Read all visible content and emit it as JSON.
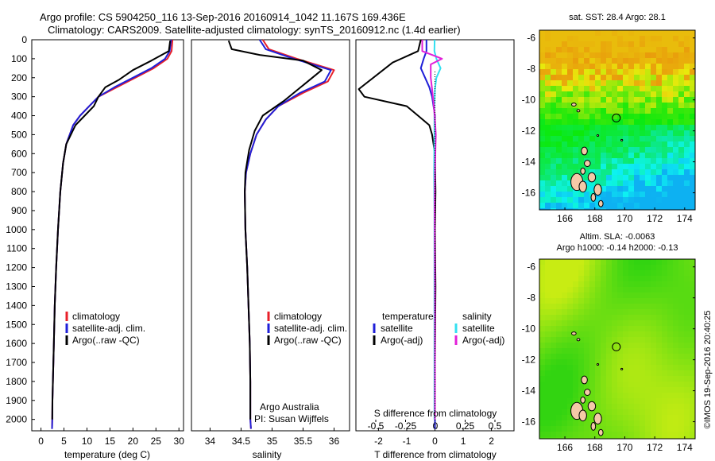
{
  "header": {
    "line1": "Argo profile: CS 5904250_116 13-Sep-2016 20160914_1042 11.167S 169.436E",
    "line2": "Climatology: CARS2009. Satellite-adjusted climatology: synTS_20160912.nc (1.4d earlier)"
  },
  "colors": {
    "climatology": "#e8202a",
    "satellite_adj": "#1f1fd8",
    "argo": "#000000",
    "satellite_sal": "#33e0f0",
    "argo_adj_sal": "#e21fd8"
  },
  "footer": {
    "argo_australia": "Argo Australia",
    "pi": "PI: Susan Wijffels"
  },
  "timestamp": "©IMOS 19-Sep-2016 20:40:25",
  "map_sst": {
    "title": "sat. SST: 28.4  Argo: 28.1"
  },
  "map_sla": {
    "title_line1": "Altim. SLA: -0.0063",
    "title_line2": "Argo h1000: -0.14  h2000: -0.13"
  },
  "chart_data": [
    {
      "type": "line",
      "id": "temperature",
      "xlabel": "temperature (deg C)",
      "ylabel": "",
      "xlim": [
        -2,
        31
      ],
      "ylim": [
        2060,
        0
      ],
      "xticks": [
        0,
        5,
        10,
        15,
        20,
        25,
        30
      ],
      "yticks": [
        0,
        100,
        200,
        300,
        400,
        500,
        600,
        700,
        800,
        900,
        1000,
        1100,
        1200,
        1300,
        1400,
        1500,
        1600,
        1700,
        1800,
        1900,
        2000
      ],
      "legend": [
        "climatology",
        "satellite-adj. clim.",
        "Argo(..raw -QC)"
      ],
      "series": [
        {
          "name": "climatology",
          "color": "#e8202a",
          "x": [
            28.6,
            28.4,
            27.5,
            24.5,
            20.5,
            16.5,
            12.5,
            10.5,
            8.5,
            7.0,
            5.5,
            4.8,
            4.2,
            3.7,
            3.3,
            3.0,
            2.8,
            2.6,
            2.5,
            2.45,
            2.4
          ],
          "y": [
            0,
            60,
            100,
            150,
            200,
            250,
            300,
            350,
            400,
            450,
            550,
            650,
            800,
            1000,
            1200,
            1400,
            1600,
            1800,
            1900,
            2000,
            2050
          ]
        },
        {
          "name": "satellite-adj. clim.",
          "color": "#1f1fd8",
          "x": [
            28.3,
            28.0,
            27.0,
            24.0,
            20.0,
            16.0,
            12.5,
            10.5,
            8.5,
            7.0,
            5.5,
            4.8,
            4.2,
            3.7,
            3.3,
            3.0,
            2.8,
            2.6,
            2.5,
            2.45,
            2.4
          ],
          "y": [
            0,
            60,
            100,
            150,
            200,
            250,
            300,
            350,
            400,
            450,
            550,
            650,
            800,
            1000,
            1200,
            1400,
            1600,
            1800,
            1900,
            2000,
            2050
          ]
        },
        {
          "name": "Argo(..raw -QC)",
          "color": "#000000",
          "x": [
            28.1,
            27.8,
            24.0,
            20.0,
            17.0,
            14.0,
            12.5,
            11.5,
            9.5,
            7.5,
            5.5,
            4.8,
            4.2,
            3.7,
            3.3,
            3.0,
            2.8,
            2.6,
            2.5,
            2.45
          ],
          "y": [
            5,
            60,
            110,
            160,
            210,
            250,
            300,
            350,
            400,
            450,
            550,
            650,
            800,
            1000,
            1200,
            1400,
            1600,
            1800,
            1900,
            2000
          ]
        }
      ]
    },
    {
      "type": "line",
      "id": "salinity",
      "xlabel": "salinity",
      "ylabel": "",
      "xlim": [
        33.7,
        36.25
      ],
      "ylim": [
        2060,
        0
      ],
      "xticks": [
        34,
        34.5,
        35,
        35.5,
        36
      ],
      "legend": [
        "climatology",
        "satellite-adj. clim.",
        "Argo(..raw -QC)"
      ],
      "series": [
        {
          "name": "climatology",
          "color": "#e8202a",
          "x": [
            34.85,
            34.95,
            35.4,
            36.0,
            35.9,
            35.5,
            35.1,
            34.9,
            34.75,
            34.65,
            34.58,
            34.56,
            34.57,
            34.6,
            34.62,
            34.64,
            34.65,
            34.65,
            34.66
          ],
          "y": [
            0,
            50,
            100,
            160,
            220,
            280,
            350,
            420,
            500,
            600,
            700,
            800,
            1000,
            1200,
            1400,
            1600,
            1800,
            2000,
            2050
          ]
        },
        {
          "name": "satellite-adj. clim.",
          "color": "#1f1fd8",
          "x": [
            34.8,
            34.9,
            35.35,
            35.95,
            35.85,
            35.45,
            35.1,
            34.9,
            34.75,
            34.65,
            34.58,
            34.56,
            34.57,
            34.6,
            34.62,
            34.64,
            34.65,
            34.65,
            34.66
          ],
          "y": [
            0,
            50,
            100,
            160,
            220,
            280,
            350,
            420,
            500,
            600,
            700,
            800,
            1000,
            1200,
            1400,
            1600,
            1800,
            2000,
            2050
          ]
        },
        {
          "name": "Argo(..raw -QC)",
          "color": "#000000",
          "x": [
            34.3,
            34.35,
            34.8,
            35.5,
            35.8,
            35.5,
            35.2,
            34.85,
            34.72,
            34.63,
            34.57,
            34.56,
            34.57,
            34.6,
            34.62,
            34.64,
            34.65,
            34.65
          ],
          "y": [
            5,
            50,
            80,
            110,
            160,
            240,
            320,
            400,
            480,
            580,
            700,
            800,
            1000,
            1200,
            1400,
            1600,
            1800,
            2000
          ]
        }
      ]
    },
    {
      "type": "line",
      "id": "difference",
      "xlabel": "T difference from climatology",
      "xlabel_top": "S difference from climatology",
      "xlim": [
        -2.8,
        2.8
      ],
      "ylim": [
        2060,
        0
      ],
      "xticks": [
        -2,
        -1,
        0,
        1,
        2
      ],
      "sticks": [
        -0.5,
        -0.25,
        0,
        0.25,
        0.5
      ],
      "legend_left_title": "temperature",
      "legend_left": [
        "satellite",
        "Argo(-adj)"
      ],
      "legend_right_title": "salinity",
      "legend_right": [
        "satellite",
        "Argo(-adj)"
      ],
      "series": [
        {
          "name": "temperature satellite",
          "color": "#1f1fd8",
          "x": [
            -0.3,
            -0.3,
            -0.4,
            -0.5,
            -0.35,
            -0.2,
            -0.1,
            0,
            0,
            0,
            0,
            0,
            0,
            0,
            0
          ],
          "y": [
            0,
            60,
            100,
            150,
            200,
            250,
            300,
            400,
            600,
            800,
            1000,
            1200,
            1400,
            1800,
            2050
          ]
        },
        {
          "name": "temperature Argo(-adj)",
          "color": "#000000",
          "x": [
            -0.5,
            -0.6,
            -1.5,
            -2.7,
            -2.5,
            -1.0,
            -0.6,
            -0.2,
            -0.1,
            0,
            0.02,
            0,
            0.02,
            0,
            0
          ],
          "y": [
            0,
            60,
            120,
            260,
            300,
            350,
            400,
            450,
            500,
            600,
            800,
            1000,
            1300,
            1700,
            2000
          ]
        },
        {
          "name": "salinity satellite",
          "color": "#33e0f0",
          "x": [
            -0.01,
            -0.02,
            0.05,
            0.2,
            0.05,
            0,
            -0.02,
            -0.02,
            -0.03,
            -0.02,
            -0.02,
            -0.02,
            -0.02,
            -0.02,
            -0.02
          ],
          "y": [
            0,
            60,
            100,
            150,
            200,
            260,
            350,
            500,
            700,
            900,
            1100,
            1300,
            1500,
            1800,
            2000
          ]
        },
        {
          "name": "salinity Argo(-adj)",
          "color": "#e21fd8",
          "x": [
            -0.45,
            -0.45,
            -0.1,
            0.25,
            -0.15,
            -0.15,
            -0.1,
            -0.05,
            0,
            0.03,
            0.02,
            0.01,
            0,
            -0.01,
            0,
            0
          ],
          "y": [
            0,
            60,
            80,
            100,
            130,
            200,
            260,
            330,
            420,
            500,
            560,
            620,
            700,
            900,
            1300,
            2000
          ]
        }
      ]
    },
    {
      "type": "heatmap",
      "id": "map_sst",
      "title": "sat. SST: 28.4  Argo: 28.1",
      "xlim": [
        164.3,
        174.7
      ],
      "ylim": [
        -17.1,
        -5.5
      ],
      "xticks": [
        166,
        168,
        170,
        172,
        174
      ],
      "yticks": [
        -6,
        -8,
        -10,
        -12,
        -14,
        -16
      ],
      "marker": {
        "lon": 169.436,
        "lat": -11.167
      }
    },
    {
      "type": "heatmap",
      "id": "map_sla",
      "title": "Altim. SLA: -0.0063",
      "xlim": [
        164.3,
        174.7
      ],
      "ylim": [
        -17.1,
        -5.5
      ],
      "xticks": [
        166,
        168,
        170,
        172,
        174
      ],
      "yticks": [
        -6,
        -8,
        -10,
        -12,
        -14,
        -16
      ],
      "marker": {
        "lon": 169.436,
        "lat": -11.167
      }
    }
  ]
}
